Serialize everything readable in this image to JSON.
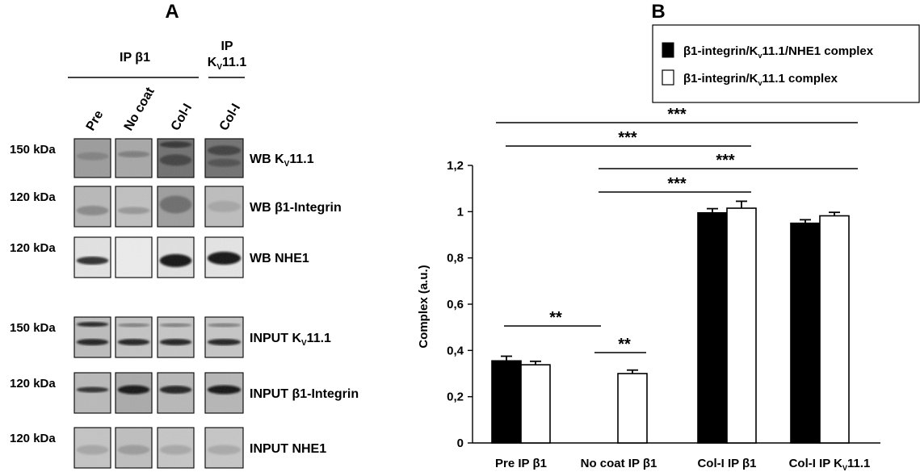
{
  "panel_a": {
    "label": "A",
    "header_ip_b1": "IP β1",
    "header_ip_kv_line1": "IP",
    "header_ip_kv_line2_main": "K",
    "header_ip_kv_line2_sub": "V",
    "header_ip_kv_line2_tail": "11.1",
    "lanes": [
      "Pre",
      "No coat",
      "Col-I",
      "Col-I"
    ],
    "rows": [
      {
        "kda": "150 kDa",
        "label_main": "WB K",
        "label_sub": "V",
        "label_tail": "11.1"
      },
      {
        "kda": "120 kDa",
        "label_main": "WB β1-Integrin",
        "label_sub": "",
        "label_tail": ""
      },
      {
        "kda": "120 kDa",
        "label_main": "WB NHE1",
        "label_sub": "",
        "label_tail": ""
      },
      {
        "kda": "150 kDa",
        "label_main": "INPUT K",
        "label_sub": "V",
        "label_tail": "11.1"
      },
      {
        "kda": "120 kDa",
        "label_main": "INPUT β1-Integrin",
        "label_sub": "",
        "label_tail": ""
      },
      {
        "kda": "120 kDa",
        "label_main": "INPUT NHE1",
        "label_sub": "",
        "label_tail": ""
      }
    ]
  },
  "chart_data": {
    "panel_label": "B",
    "type": "bar",
    "ylabel": "Complex (a.u.)",
    "ylim": [
      0,
      1.2
    ],
    "yticks": [
      0,
      0.2,
      0.4,
      0.6,
      0.8,
      1,
      1.2
    ],
    "ytick_labels": [
      "0",
      "0,2",
      "0,4",
      "0,6",
      "0,8",
      "1",
      "1,2"
    ],
    "categories": [
      "Pre IP β1",
      "No coat IP β1",
      "Col-I IP β1",
      "Col-I IP KV11.1"
    ],
    "category_labels": [
      {
        "main": "Pre IP β1",
        "sub": "",
        "tail": ""
      },
      {
        "main": "No coat IP β1",
        "sub": "",
        "tail": ""
      },
      {
        "main": "Col-I IP β1",
        "sub": "",
        "tail": ""
      },
      {
        "main": "Col-I IP K",
        "sub": "V",
        "tail": "11.1"
      }
    ],
    "series": [
      {
        "name": "β1-integrin/Kv11.1/NHE1 complex",
        "legend_main": "β1-integrin/K",
        "legend_sub": "v",
        "legend_tail": "11.1/NHE1 complex",
        "color": "#000000",
        "values": [
          0.355,
          0.0,
          0.995,
          0.95
        ],
        "errors": [
          0.02,
          0.0,
          0.018,
          0.015
        ]
      },
      {
        "name": "β1-integrin/Kv11.1 complex",
        "legend_main": "β1-integrin/K",
        "legend_sub": "v",
        "legend_tail": "11.1 complex",
        "color": "#ffffff",
        "values": [
          0.338,
          0.3,
          1.015,
          0.982
        ],
        "errors": [
          0.015,
          0.015,
          0.03,
          0.015
        ]
      }
    ],
    "significance": [
      {
        "text": "***"
      },
      {
        "text": "***"
      },
      {
        "text": "***"
      },
      {
        "text": "***"
      },
      {
        "text": "**"
      },
      {
        "text": "**"
      }
    ],
    "legend_placement": "top-right",
    "grid": false
  }
}
